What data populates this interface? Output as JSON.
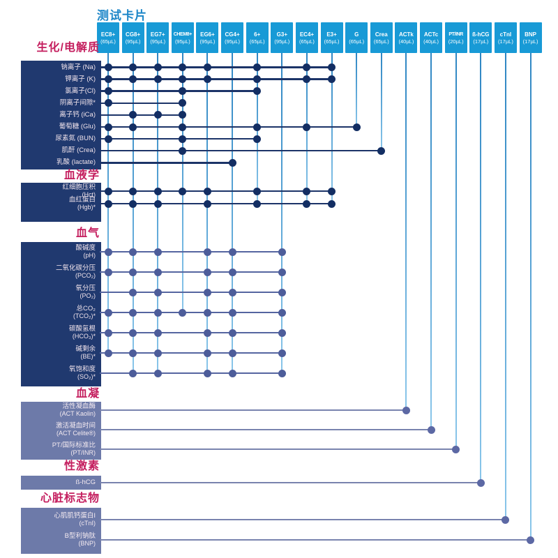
{
  "title": "测试卡片",
  "colors": {
    "header_blue": "#189ad6",
    "title_blue": "#1c86c8",
    "category_crimson": "#c41e5e",
    "dark_navy_box": "#20396f",
    "light_slate_box": "#6d7aa9",
    "grid_line_blue": "#5aa9da"
  },
  "chart_data": {
    "type": "table",
    "title": "测试卡片",
    "columns": [
      {
        "name": "EC8+",
        "volume": "(65µL)"
      },
      {
        "name": "CG8+",
        "volume": "(95µL)"
      },
      {
        "name": "EG7+",
        "volume": "(95µL)"
      },
      {
        "name": "CHEM8+",
        "volume": "(95µL)"
      },
      {
        "name": "EG6+",
        "volume": "(95µL)"
      },
      {
        "name": "CG4+",
        "volume": "(95µL)"
      },
      {
        "name": "6+",
        "volume": "(65µL)"
      },
      {
        "name": "G3+",
        "volume": "(95µL)"
      },
      {
        "name": "EC4+",
        "volume": "(65µL)"
      },
      {
        "name": "E3+",
        "volume": "(65µL)"
      },
      {
        "name": "G",
        "volume": "(65µL)"
      },
      {
        "name": "Crea",
        "volume": "(65µL)"
      },
      {
        "name": "ACTk",
        "volume": "(40µL)"
      },
      {
        "name": "ACTc",
        "volume": "(40µL)"
      },
      {
        "name": "PT/INR",
        "volume": "(20µL)"
      },
      {
        "name": "ß-hCG",
        "volume": "(17µL)"
      },
      {
        "name": "cTnI",
        "volume": "(17µL)"
      },
      {
        "name": "BNP",
        "volume": "(17µL)"
      }
    ],
    "sections": [
      {
        "title": "生化/电解质",
        "rows": [
          {
            "label": "钠离子 (Na)",
            "cartridges": [
              "EC8+",
              "CG8+",
              "EG7+",
              "CHEM8+",
              "EG6+",
              "6+",
              "EC4+",
              "E3+"
            ]
          },
          {
            "label": "钾离子 (K)",
            "cartridges": [
              "EC8+",
              "CG8+",
              "EG7+",
              "CHEM8+",
              "EG6+",
              "6+",
              "EC4+",
              "E3+"
            ]
          },
          {
            "label": "氯离子(Cl)",
            "cartridges": [
              "EC8+",
              "CHEM8+",
              "6+"
            ]
          },
          {
            "label": "阴离子间隙*",
            "cartridges": [
              "EC8+",
              "CHEM8+"
            ]
          },
          {
            "label": "离子钙 (iCa)",
            "cartridges": [
              "CG8+",
              "EG7+",
              "CHEM8+"
            ]
          },
          {
            "label": "葡萄糖 (Glu)",
            "cartridges": [
              "EC8+",
              "CG8+",
              "CHEM8+",
              "6+",
              "EC4+",
              "G"
            ]
          },
          {
            "label": "尿素氮 (BUN)",
            "cartridges": [
              "EC8+",
              "CHEM8+",
              "6+"
            ]
          },
          {
            "label": "肌酐 (Crea)",
            "cartridges": [
              "CHEM8+",
              "Crea"
            ]
          },
          {
            "label": "乳酸 (lactate)",
            "cartridges": [
              "CG4+"
            ]
          }
        ]
      },
      {
        "title": "血液学",
        "rows": [
          {
            "label": "红细胞压积",
            "sub": "(Hct)",
            "cartridges": [
              "EC8+",
              "CG8+",
              "EG7+",
              "CHEM8+",
              "EG6+",
              "6+",
              "EC4+",
              "E3+"
            ]
          },
          {
            "label": "血红蛋白",
            "sub": "(Hgb)*",
            "cartridges": [
              "EC8+",
              "CG8+",
              "EG7+",
              "EG6+",
              "6+",
              "EC4+",
              "E3+"
            ]
          }
        ]
      },
      {
        "title": "血气",
        "rows": [
          {
            "label": "酸碱度",
            "sub": "(pH)",
            "cartridges": [
              "EC8+",
              "CG8+",
              "EG7+",
              "EG6+",
              "CG4+",
              "G3+"
            ]
          },
          {
            "label": "二氧化碳分压",
            "sub": "(PCO₂)",
            "cartridges": [
              "EC8+",
              "CG8+",
              "EG7+",
              "EG6+",
              "CG4+",
              "G3+"
            ]
          },
          {
            "label": "氧分压",
            "sub": "(PO₂)",
            "cartridges": [
              "CG8+",
              "EG7+",
              "EG6+",
              "CG4+",
              "G3+"
            ]
          },
          {
            "label": "总CO₂",
            "sub": "(TCO₂)*",
            "cartridges": [
              "EC8+",
              "CG8+",
              "EG7+",
              "CHEM8+",
              "EG6+",
              "CG4+",
              "G3+"
            ]
          },
          {
            "label": "碳酸氢根",
            "sub": "(HCO₃)*",
            "cartridges": [
              "EC8+",
              "CG8+",
              "EG7+",
              "EG6+",
              "CG4+",
              "G3+"
            ]
          },
          {
            "label": "碱剩余",
            "sub": "(BE)*",
            "cartridges": [
              "EC8+",
              "CG8+",
              "EG7+",
              "EG6+",
              "CG4+",
              "G3+"
            ]
          },
          {
            "label": "氧饱和度",
            "sub": "(SO₂)*",
            "cartridges": [
              "CG8+",
              "EG7+",
              "EG6+",
              "CG4+",
              "G3+"
            ]
          }
        ]
      },
      {
        "title": "血凝",
        "rows": [
          {
            "label": "活性凝血酶",
            "sub": "(ACT Kaolin)",
            "cartridges": [
              "ACTk"
            ]
          },
          {
            "label": "激活凝血时间",
            "sub": "(ACT Celite®)",
            "cartridges": [
              "ACTc"
            ]
          },
          {
            "label": "PT/国际标准比",
            "sub": "(PT/INR)",
            "cartridges": [
              "PT/INR"
            ]
          }
        ]
      },
      {
        "title": "性激素",
        "rows": [
          {
            "label": "ß-hCG",
            "cartridges": [
              "ß-hCG"
            ]
          }
        ]
      },
      {
        "title": "心脏标志物",
        "rows": [
          {
            "label": "心肌肌钙蛋白I",
            "sub": "(cTnI)",
            "cartridges": [
              "cTnI"
            ]
          },
          {
            "label": "B型利钠肽",
            "sub": "(BNP)",
            "cartridges": [
              "BNP"
            ]
          }
        ]
      }
    ]
  }
}
